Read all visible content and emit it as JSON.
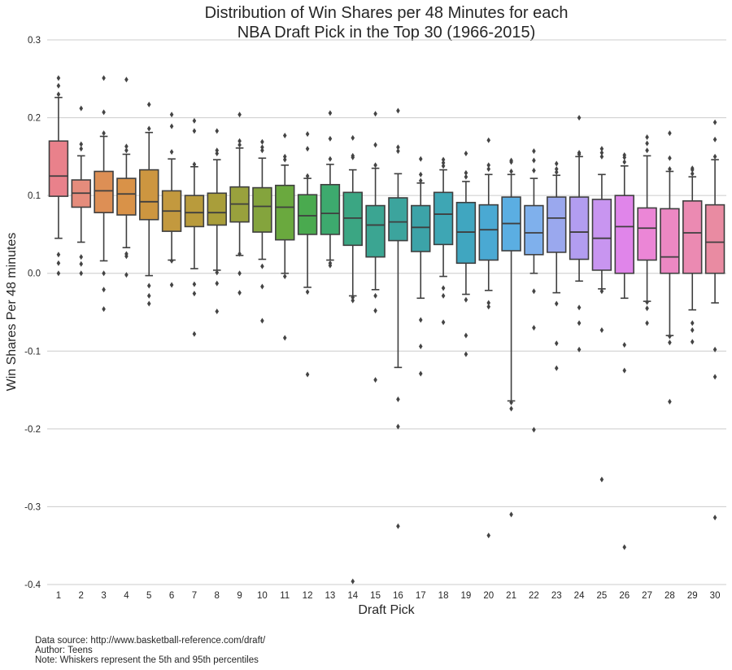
{
  "chart_data": {
    "type": "box",
    "title_lines": [
      "Distribution of Win Shares per 48 Minutes for each",
      "NBA Draft Pick in the Top 30 (1966-2015)"
    ],
    "xlabel": "Draft Pick",
    "ylabel": "Win Shares Per 48 minutes",
    "ylim": [
      -0.4,
      0.3
    ],
    "yticks": [
      "-0.4",
      "-0.3",
      "-0.2",
      "-0.1",
      "0.0",
      "0.1",
      "0.2",
      "0.3"
    ],
    "ytick_values": [
      -0.4,
      -0.3,
      -0.2,
      -0.1,
      0.0,
      0.1,
      0.2,
      0.3
    ],
    "grid": "horizontal",
    "categories": [
      "1",
      "2",
      "3",
      "4",
      "5",
      "6",
      "7",
      "8",
      "9",
      "10",
      "11",
      "12",
      "13",
      "14",
      "15",
      "16",
      "17",
      "18",
      "19",
      "20",
      "21",
      "22",
      "23",
      "24",
      "25",
      "26",
      "27",
      "28",
      "29",
      "30"
    ],
    "boxes": [
      {
        "whislo": 0.045,
        "q1": 0.099,
        "med": 0.125,
        "q3": 0.17,
        "whishi": 0.226,
        "fliers": [
          0.0,
          0.013,
          0.024,
          0.23,
          0.241,
          0.251
        ],
        "color": "#e9818b"
      },
      {
        "whislo": 0.04,
        "q1": 0.085,
        "med": 0.103,
        "q3": 0.12,
        "whishi": 0.151,
        "fliers": [
          0.0,
          0.012,
          0.021,
          0.16,
          0.166,
          0.212
        ],
        "color": "#e58c7c"
      },
      {
        "whislo": 0.016,
        "q1": 0.078,
        "med": 0.106,
        "q3": 0.131,
        "whishi": 0.176,
        "fliers": [
          -0.046,
          -0.021,
          0.0,
          0.18,
          0.207,
          0.251
        ],
        "color": "#dd8f55"
      },
      {
        "whislo": 0.033,
        "q1": 0.075,
        "med": 0.102,
        "q3": 0.122,
        "whishi": 0.153,
        "fliers": [
          -0.002,
          0.022,
          0.025,
          0.158,
          0.163,
          0.249
        ],
        "color": "#d99248"
      },
      {
        "whislo": -0.003,
        "q1": 0.069,
        "med": 0.092,
        "q3": 0.133,
        "whishi": 0.181,
        "fliers": [
          -0.039,
          -0.029,
          -0.016,
          0.186,
          0.217
        ],
        "color": "#cd9640"
      },
      {
        "whislo": 0.017,
        "q1": 0.054,
        "med": 0.08,
        "q3": 0.106,
        "whishi": 0.147,
        "fliers": [
          -0.015,
          0.016,
          0.156,
          0.189,
          0.204
        ],
        "color": "#c3993e"
      },
      {
        "whislo": 0.006,
        "q1": 0.06,
        "med": 0.078,
        "q3": 0.1,
        "whishi": 0.137,
        "fliers": [
          -0.078,
          -0.026,
          -0.014,
          0.14,
          0.183,
          0.196
        ],
        "color": "#b99b3c"
      },
      {
        "whislo": 0.004,
        "q1": 0.062,
        "med": 0.078,
        "q3": 0.103,
        "whishi": 0.146,
        "fliers": [
          -0.049,
          -0.013,
          0.001,
          0.154,
          0.158,
          0.183
        ],
        "color": "#a99e3a"
      },
      {
        "whislo": 0.023,
        "q1": 0.066,
        "med": 0.089,
        "q3": 0.111,
        "whishi": 0.161,
        "fliers": [
          -0.025,
          0.0,
          0.025,
          0.165,
          0.17,
          0.204
        ],
        "color": "#99a13d"
      },
      {
        "whislo": 0.018,
        "q1": 0.053,
        "med": 0.086,
        "q3": 0.11,
        "whishi": 0.148,
        "fliers": [
          -0.061,
          -0.017,
          0.009,
          0.158,
          0.162,
          0.169
        ],
        "color": "#84a43d"
      },
      {
        "whislo": 0.0,
        "q1": 0.043,
        "med": 0.085,
        "q3": 0.113,
        "whishi": 0.139,
        "fliers": [
          -0.083,
          -0.004,
          0.146,
          0.15,
          0.177
        ],
        "color": "#6aa93e"
      },
      {
        "whislo": -0.018,
        "q1": 0.05,
        "med": 0.074,
        "q3": 0.101,
        "whishi": 0.122,
        "fliers": [
          -0.13,
          -0.024,
          0.125,
          0.16,
          0.179
        ],
        "color": "#4aaa4f"
      },
      {
        "whislo": 0.017,
        "q1": 0.05,
        "med": 0.077,
        "q3": 0.114,
        "whishi": 0.14,
        "fliers": [
          0.01,
          0.013,
          0.147,
          0.173,
          0.206
        ],
        "color": "#3daa6e"
      },
      {
        "whislo": -0.029,
        "q1": 0.036,
        "med": 0.071,
        "q3": 0.104,
        "whishi": 0.133,
        "fliers": [
          -0.396,
          -0.035,
          -0.031,
          0.149,
          0.151,
          0.174
        ],
        "color": "#3ba683"
      },
      {
        "whislo": -0.021,
        "q1": 0.021,
        "med": 0.062,
        "q3": 0.087,
        "whishi": 0.135,
        "fliers": [
          -0.137,
          -0.048,
          -0.029,
          0.139,
          0.165,
          0.205
        ],
        "color": "#3ba592"
      },
      {
        "whislo": -0.121,
        "q1": 0.042,
        "med": 0.066,
        "q3": 0.097,
        "whishi": 0.128,
        "fliers": [
          -0.325,
          -0.197,
          -0.162,
          0.157,
          0.162,
          0.209
        ],
        "color": "#3ca49d"
      },
      {
        "whislo": -0.032,
        "q1": 0.028,
        "med": 0.059,
        "q3": 0.087,
        "whishi": 0.116,
        "fliers": [
          -0.129,
          -0.094,
          -0.06,
          0.119,
          0.127,
          0.147
        ],
        "color": "#3ca3a8"
      },
      {
        "whislo": -0.004,
        "q1": 0.037,
        "med": 0.076,
        "q3": 0.104,
        "whishi": 0.133,
        "fliers": [
          -0.063,
          -0.029,
          -0.019,
          0.138,
          0.142,
          0.146
        ],
        "color": "#3ea6b4"
      },
      {
        "whislo": -0.027,
        "q1": 0.013,
        "med": 0.053,
        "q3": 0.091,
        "whishi": 0.118,
        "fliers": [
          -0.104,
          -0.08,
          -0.034,
          0.124,
          0.129,
          0.154
        ],
        "color": "#40a6c0"
      },
      {
        "whislo": -0.022,
        "q1": 0.017,
        "med": 0.056,
        "q3": 0.088,
        "whishi": 0.127,
        "fliers": [
          -0.337,
          -0.043,
          -0.038,
          0.134,
          0.139,
          0.171
        ],
        "color": "#4aa9d3"
      },
      {
        "whislo": -0.164,
        "q1": 0.029,
        "med": 0.064,
        "q3": 0.098,
        "whishi": 0.127,
        "fliers": [
          -0.31,
          -0.174,
          -0.166,
          0.131,
          0.143,
          0.145
        ],
        "color": "#5baee2"
      },
      {
        "whislo": 0.0,
        "q1": 0.024,
        "med": 0.052,
        "q3": 0.087,
        "whishi": 0.122,
        "fliers": [
          -0.201,
          -0.07,
          -0.023,
          0.132,
          0.145,
          0.157
        ],
        "color": "#7fb0ec"
      },
      {
        "whislo": -0.025,
        "q1": 0.027,
        "med": 0.071,
        "q3": 0.098,
        "whishi": 0.126,
        "fliers": [
          -0.122,
          -0.09,
          -0.039,
          0.13,
          0.134,
          0.141
        ],
        "color": "#9aa8ee"
      },
      {
        "whislo": -0.01,
        "q1": 0.018,
        "med": 0.053,
        "q3": 0.098,
        "whishi": 0.15,
        "fliers": [
          -0.098,
          -0.064,
          -0.044,
          0.153,
          0.155,
          0.2
        ],
        "color": "#b29df0"
      },
      {
        "whislo": -0.02,
        "q1": 0.004,
        "med": 0.045,
        "q3": 0.095,
        "whishi": 0.127,
        "fliers": [
          -0.265,
          -0.073,
          -0.023,
          0.15,
          0.155,
          0.16
        ],
        "color": "#c895f0"
      },
      {
        "whislo": -0.032,
        "q1": 0.0,
        "med": 0.06,
        "q3": 0.1,
        "whishi": 0.138,
        "fliers": [
          -0.352,
          -0.125,
          -0.092,
          0.143,
          0.149,
          0.152
        ],
        "color": "#e085ea"
      },
      {
        "whislo": -0.036,
        "q1": 0.017,
        "med": 0.058,
        "q3": 0.084,
        "whishi": 0.151,
        "fliers": [
          -0.064,
          -0.045,
          -0.037,
          0.158,
          0.167,
          0.175
        ],
        "color": "#eb86d6"
      },
      {
        "whislo": -0.08,
        "q1": 0.0,
        "med": 0.021,
        "q3": 0.083,
        "whishi": 0.131,
        "fliers": [
          -0.165,
          -0.089,
          -0.081,
          0.134,
          0.148,
          0.18
        ],
        "color": "#ec88c3"
      },
      {
        "whislo": -0.047,
        "q1": 0.0,
        "med": 0.052,
        "q3": 0.093,
        "whishi": 0.124,
        "fliers": [
          -0.088,
          -0.073,
          -0.064,
          0.128,
          0.133,
          0.135
        ],
        "color": "#eb8ab2"
      },
      {
        "whislo": -0.038,
        "q1": 0.0,
        "med": 0.04,
        "q3": 0.088,
        "whishi": 0.146,
        "fliers": [
          -0.314,
          -0.133,
          -0.098,
          0.15,
          0.172,
          0.194
        ],
        "color": "#e98ba2"
      }
    ]
  },
  "notes": [
    "Data source: http://www.basketball-reference.com/draft/",
    "Author: Teens",
    "Note: Whiskers represent the 5th and 95th percentiles"
  ]
}
